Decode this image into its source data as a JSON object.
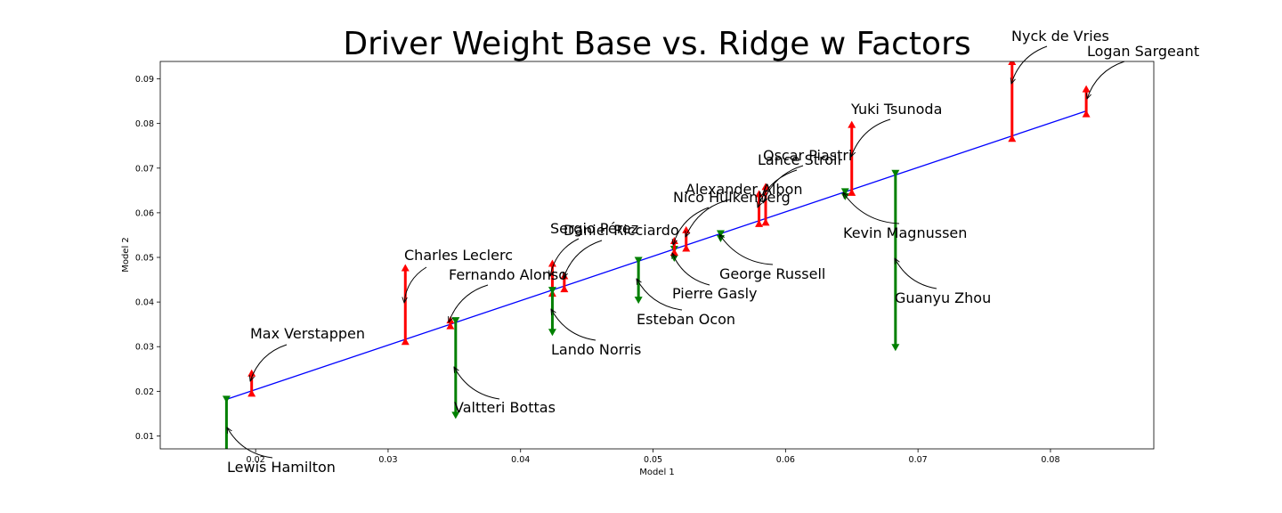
{
  "chart_data": {
    "type": "scatter",
    "title": "Driver Weight Base vs. Ridge w Factors",
    "xlabel": "Model 1",
    "ylabel": "Model 2",
    "xlim": [
      0.0128,
      0.0878
    ],
    "ylim": [
      0.0071,
      0.0939
    ],
    "xticks": [
      0.02,
      0.03,
      0.04,
      0.05,
      0.06,
      0.07,
      0.08
    ],
    "yticks": [
      0.01,
      0.02,
      0.03,
      0.04,
      0.05,
      0.06,
      0.07,
      0.08,
      0.09
    ],
    "grid": false,
    "colors": {
      "fit_line": "#0000ff",
      "increase": "#ff0000",
      "decrease": "#008000",
      "frame": "#000000"
    },
    "fit_line": {
      "x": [
        0.0178,
        0.0827
      ],
      "y": [
        0.0182,
        0.0828
      ]
    },
    "drivers": [
      {
        "name": "Lewis Hamilton",
        "x": 0.0178,
        "base": 0.0182,
        "adj": 0.005
      },
      {
        "name": "Max Verstappen",
        "x": 0.0197,
        "base": 0.0196,
        "adj": 0.0241
      },
      {
        "name": "Charles Leclerc",
        "x": 0.0313,
        "base": 0.0312,
        "adj": 0.0477
      },
      {
        "name": "Fernando Alonso",
        "x": 0.0347,
        "base": 0.0347,
        "adj": 0.036
      },
      {
        "name": "Valtteri Bottas",
        "x": 0.0351,
        "base": 0.0358,
        "adj": 0.0146
      },
      {
        "name": "Sergio Pérez",
        "x": 0.0424,
        "base": 0.042,
        "adj": 0.0487
      },
      {
        "name": "Lando Norris",
        "x": 0.0424,
        "base": 0.0426,
        "adj": 0.0332
      },
      {
        "name": "Daniel Ricciardo",
        "x": 0.0433,
        "base": 0.043,
        "adj": 0.0459
      },
      {
        "name": "Esteban Ocon",
        "x": 0.0489,
        "base": 0.0493,
        "adj": 0.0404
      },
      {
        "name": "Pierre Gasly",
        "x": 0.0516,
        "base": 0.0518,
        "adj": 0.0498
      },
      {
        "name": "Nico Hülkenberg",
        "x": 0.0516,
        "base": 0.0512,
        "adj": 0.0538
      },
      {
        "name": "Alexander Albon",
        "x": 0.0525,
        "base": 0.0521,
        "adj": 0.0562
      },
      {
        "name": "George Russell",
        "x": 0.0551,
        "base": 0.0553,
        "adj": 0.0542
      },
      {
        "name": "Lance Stroll",
        "x": 0.058,
        "base": 0.0576,
        "adj": 0.0643
      },
      {
        "name": "Oscar Piastri",
        "x": 0.0585,
        "base": 0.0579,
        "adj": 0.0659
      },
      {
        "name": "Kevin Magnussen",
        "x": 0.0645,
        "base": 0.0647,
        "adj": 0.0636
      },
      {
        "name": "Yuki Tsunoda",
        "x": 0.065,
        "base": 0.0646,
        "adj": 0.0798
      },
      {
        "name": "Guanyu Zhou",
        "x": 0.0683,
        "base": 0.0688,
        "adj": 0.0298
      },
      {
        "name": "Nyck de Vries",
        "x": 0.0771,
        "base": 0.0767,
        "adj": 0.0939
      },
      {
        "name": "Logan Sargeant",
        "x": 0.0827,
        "base": 0.0822,
        "adj": 0.0878
      }
    ]
  }
}
